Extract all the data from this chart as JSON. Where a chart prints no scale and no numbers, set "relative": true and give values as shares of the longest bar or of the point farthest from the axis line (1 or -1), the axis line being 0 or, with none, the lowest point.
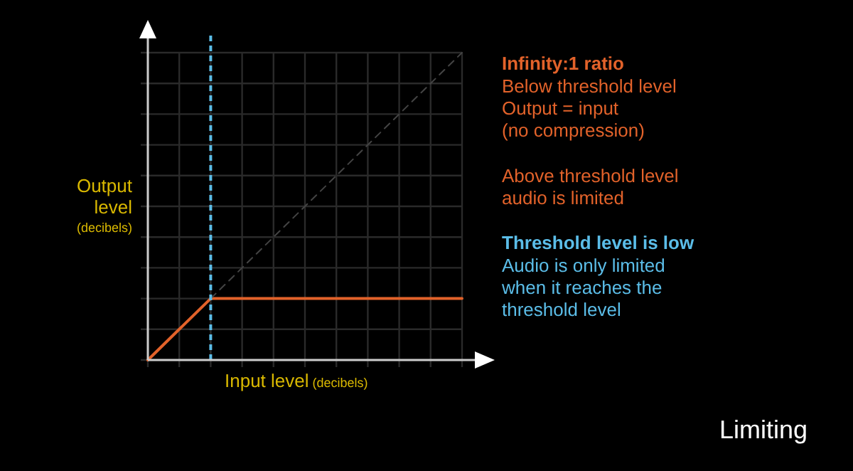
{
  "chart_data": {
    "type": "line",
    "relative": true,
    "xlabel": "Input level (decibels)",
    "ylabel": "Output level $_{(decibels)}$",
    "categories": [
      null,
      null,
      null,
      null,
      null,
      null,
      null,
      null,
      null,
      null,
      null
    ],
    "grid": true,
    "series": [
      {
        "color": "#e2622a",
        "values": [
          0,
          0.1,
          0.2,
          0.2,
          0.2,
          0.2,
          0.2,
          0.2,
          0.2,
          0.2,
          0.2
        ],
        "line_style": "solid"
      },
      {
        "color": "#444444",
        "values": [
          null,
          null,
          0.2,
          0.3,
          0.4,
          0.5,
          0.6,
          0.7,
          0.8,
          0.9,
          1
        ],
        "line_style": "dashed"
      }
    ],
    "annotations": [
      "Infinity:1 ratio",
      "Below threshold level\nOutput = input\n(no compression)",
      "Above threshold level\naudio is limited",
      "Threshold level is low",
      "Audio is only limited\nwhen it reaches the\nthreshold level",
      "Limiting"
    ]
  }
}
